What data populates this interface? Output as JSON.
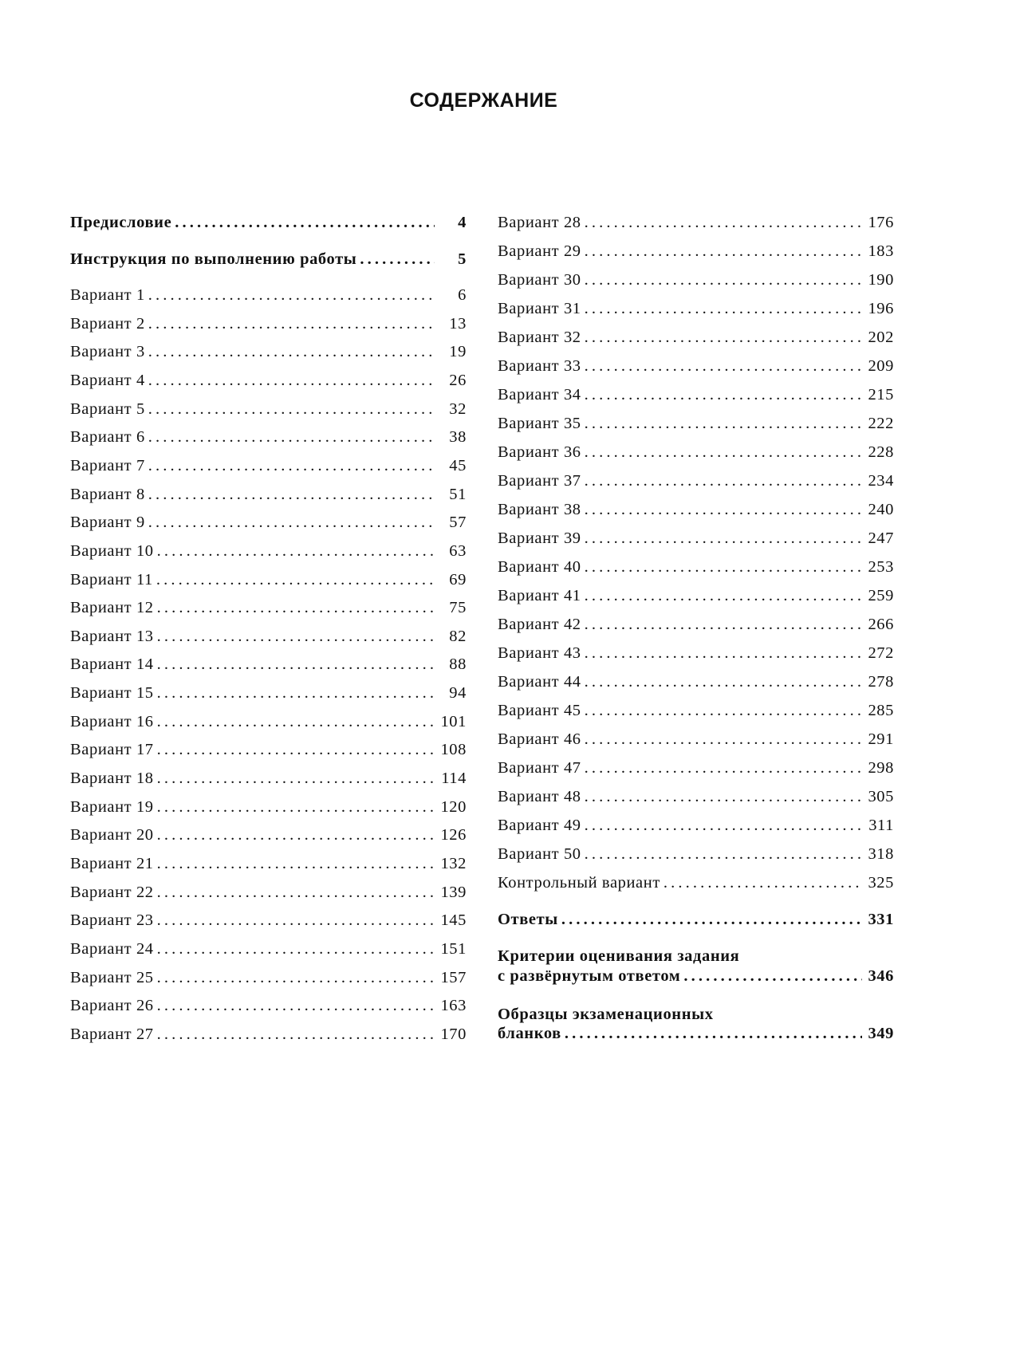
{
  "title": "СОДЕРЖАНИЕ",
  "left_column": [
    {
      "label": "Предисловие",
      "page": "4",
      "bold": true
    },
    {
      "label": "Инструкция по выполнению работы",
      "page": "5",
      "bold": true
    },
    {
      "label": "Вариант 1",
      "page": "6"
    },
    {
      "label": "Вариант 2",
      "page": "13"
    },
    {
      "label": "Вариант 3",
      "page": "19"
    },
    {
      "label": "Вариант 4",
      "page": "26"
    },
    {
      "label": "Вариант 5",
      "page": "32"
    },
    {
      "label": "Вариант 6",
      "page": "38"
    },
    {
      "label": "Вариант 7",
      "page": "45"
    },
    {
      "label": "Вариант 8",
      "page": "51"
    },
    {
      "label": "Вариант 9",
      "page": "57"
    },
    {
      "label": "Вариант 10",
      "page": "63"
    },
    {
      "label": "Вариант 11",
      "page": "69"
    },
    {
      "label": "Вариант 12",
      "page": "75"
    },
    {
      "label": "Вариант 13",
      "page": "82"
    },
    {
      "label": "Вариант 14",
      "page": "88"
    },
    {
      "label": "Вариант 15",
      "page": "94"
    },
    {
      "label": "Вариант 16",
      "page": "101"
    },
    {
      "label": "Вариант 17",
      "page": "108"
    },
    {
      "label": "Вариант 18",
      "page": "114"
    },
    {
      "label": "Вариант 19",
      "page": "120"
    },
    {
      "label": "Вариант 20",
      "page": "126"
    },
    {
      "label": "Вариант 21",
      "page": "132"
    },
    {
      "label": "Вариант 22",
      "page": "139"
    },
    {
      "label": "Вариант 23",
      "page": "145"
    },
    {
      "label": "Вариант 24",
      "page": "151"
    },
    {
      "label": "Вариант 25",
      "page": "157"
    },
    {
      "label": "Вариант 26",
      "page": "163"
    },
    {
      "label": "Вариант 27",
      "page": "170"
    }
  ],
  "right_column": [
    {
      "label": "Вариант 28",
      "page": "176"
    },
    {
      "label": "Вариант 29",
      "page": "183"
    },
    {
      "label": "Вариант 30",
      "page": "190"
    },
    {
      "label": "Вариант 31",
      "page": "196"
    },
    {
      "label": "Вариант 32",
      "page": "202"
    },
    {
      "label": "Вариант 33",
      "page": "209"
    },
    {
      "label": "Вариант 34",
      "page": "215"
    },
    {
      "label": "Вариант 35",
      "page": "222"
    },
    {
      "label": "Вариант 36",
      "page": "228"
    },
    {
      "label": "Вариант 37",
      "page": "234"
    },
    {
      "label": "Вариант 38",
      "page": "240"
    },
    {
      "label": "Вариант 39",
      "page": "247"
    },
    {
      "label": "Вариант 40",
      "page": "253"
    },
    {
      "label": "Вариант 41",
      "page": "259"
    },
    {
      "label": "Вариант 42",
      "page": "266"
    },
    {
      "label": "Вариант 43",
      "page": "272"
    },
    {
      "label": "Вариант 44",
      "page": "278"
    },
    {
      "label": "Вариант 45",
      "page": "285"
    },
    {
      "label": "Вариант 46",
      "page": "291"
    },
    {
      "label": "Вариант 47",
      "page": "298"
    },
    {
      "label": "Вариант 48",
      "page": "305"
    },
    {
      "label": "Вариант 49",
      "page": "311"
    },
    {
      "label": "Вариант 50",
      "page": "318"
    },
    {
      "label": "Контрольный вариант",
      "page": "325"
    },
    {
      "label": "Ответы",
      "page": "331",
      "bold": true
    },
    {
      "first_line": "Критерии оценивания задания",
      "label": "с развёрнутым ответом",
      "page": "346",
      "bold": true
    },
    {
      "first_line": "Образцы экзаменационных",
      "label": "бланков",
      "page": "349",
      "bold": true
    }
  ]
}
